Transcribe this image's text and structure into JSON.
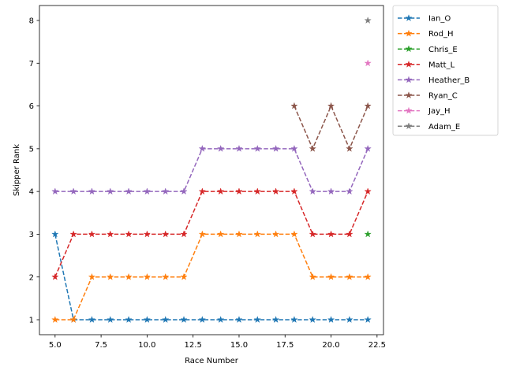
{
  "chart_data": {
    "type": "line",
    "title": "",
    "xlabel": "Race Number",
    "ylabel": "Skipper Rank",
    "xlim": [
      4.15,
      22.85
    ],
    "ylim": [
      0.65,
      8.35
    ],
    "xticks": [
      5.0,
      7.5,
      10.0,
      12.5,
      15.0,
      17.5,
      20.0,
      22.5
    ],
    "xtick_labels": [
      "5.0",
      "7.5",
      "10.0",
      "12.5",
      "15.0",
      "17.5",
      "20.0",
      "22.5"
    ],
    "yticks": [
      1,
      2,
      3,
      4,
      5,
      6,
      7,
      8
    ],
    "ytick_labels": [
      "1",
      "2",
      "3",
      "4",
      "5",
      "6",
      "7",
      "8"
    ],
    "grid": false,
    "legend_position": "outside upper right",
    "line_style": "dashed",
    "marker": "star",
    "x": [
      5,
      6,
      7,
      8,
      9,
      10,
      11,
      12,
      13,
      14,
      15,
      16,
      17,
      18,
      19,
      20,
      21,
      22
    ],
    "series": [
      {
        "name": "Ian_O",
        "color": "#1f77b4",
        "values": [
          3,
          1,
          1,
          1,
          1,
          1,
          1,
          1,
          1,
          1,
          1,
          1,
          1,
          1,
          1,
          1,
          1,
          1
        ]
      },
      {
        "name": "Rod_H",
        "color": "#ff7f0e",
        "values": [
          1,
          1,
          2,
          2,
          2,
          2,
          2,
          2,
          3,
          3,
          3,
          3,
          3,
          3,
          2,
          2,
          2,
          2
        ]
      },
      {
        "name": "Chris_E",
        "color": "#2ca02c",
        "values": [
          null,
          null,
          null,
          null,
          null,
          null,
          null,
          null,
          null,
          null,
          null,
          null,
          null,
          null,
          null,
          null,
          null,
          3
        ]
      },
      {
        "name": "Matt_L",
        "color": "#d62728",
        "values": [
          2,
          3,
          3,
          3,
          3,
          3,
          3,
          3,
          4,
          4,
          4,
          4,
          4,
          4,
          3,
          3,
          3,
          4
        ]
      },
      {
        "name": "Heather_B",
        "color": "#9467bd",
        "values": [
          4,
          4,
          4,
          4,
          4,
          4,
          4,
          4,
          5,
          5,
          5,
          5,
          5,
          5,
          4,
          4,
          4,
          5
        ]
      },
      {
        "name": "Ryan_C",
        "color": "#8c564b",
        "values": [
          null,
          null,
          null,
          null,
          null,
          null,
          null,
          null,
          null,
          null,
          null,
          null,
          null,
          6,
          5,
          6,
          5,
          6
        ]
      },
      {
        "name": "Jay_H",
        "color": "#e377c2",
        "values": [
          null,
          null,
          null,
          null,
          null,
          null,
          null,
          null,
          null,
          null,
          null,
          null,
          null,
          null,
          null,
          null,
          null,
          7
        ]
      },
      {
        "name": "Adam_E",
        "color": "#7f7f7f",
        "values": [
          null,
          null,
          null,
          null,
          null,
          null,
          null,
          null,
          null,
          null,
          null,
          null,
          null,
          null,
          null,
          null,
          null,
          8
        ]
      }
    ]
  }
}
